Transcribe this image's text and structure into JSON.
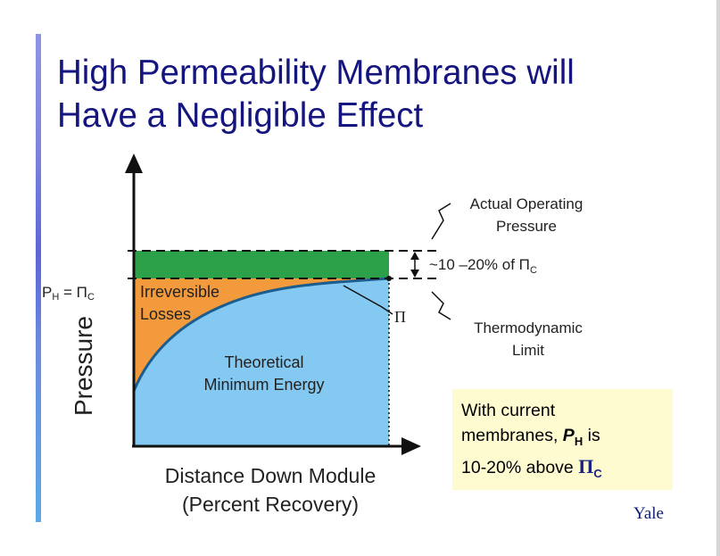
{
  "slide": {
    "title_line1": "High Permeability Membranes will",
    "title_line2": "Have a Negligible Effect"
  },
  "diagram": {
    "y_axis_label": "Pressure",
    "x_axis_label_line1": "Distance Down Module",
    "x_axis_label_line2": "(Percent Recovery)",
    "ph_label": "P",
    "ph_sub": "H",
    "ph_equals": " = Π",
    "ph_equals_sub": "C",
    "region_losses_line1": "Irreversible",
    "region_losses_line2": "Losses",
    "region_min_energy_line1": "Theoretical",
    "region_min_energy_line2": "Minimum Energy",
    "pi_curve_label": "Π",
    "actual_pressure_line1": "Actual Operating",
    "actual_pressure_line2": "Pressure",
    "gap_label": "~10 –20% of Π",
    "gap_label_sub": "C",
    "thermo_limit_line1": "Thermodynamic",
    "thermo_limit_line2": "Limit",
    "colors": {
      "operating_band": "#2ca14a",
      "losses": "#f39a3c",
      "min_energy": "#84c9f1",
      "curve": "#1b5d8e"
    }
  },
  "note": {
    "line1": "With current",
    "line2_prefix": "membranes, ",
    "line2_symbol": "P",
    "line2_sub": "H",
    "line2_suffix": " is",
    "line3_prefix": "10-20% above ",
    "line3_symbol": "Π",
    "line3_sub": "C"
  },
  "logo": {
    "text": "Yale"
  }
}
